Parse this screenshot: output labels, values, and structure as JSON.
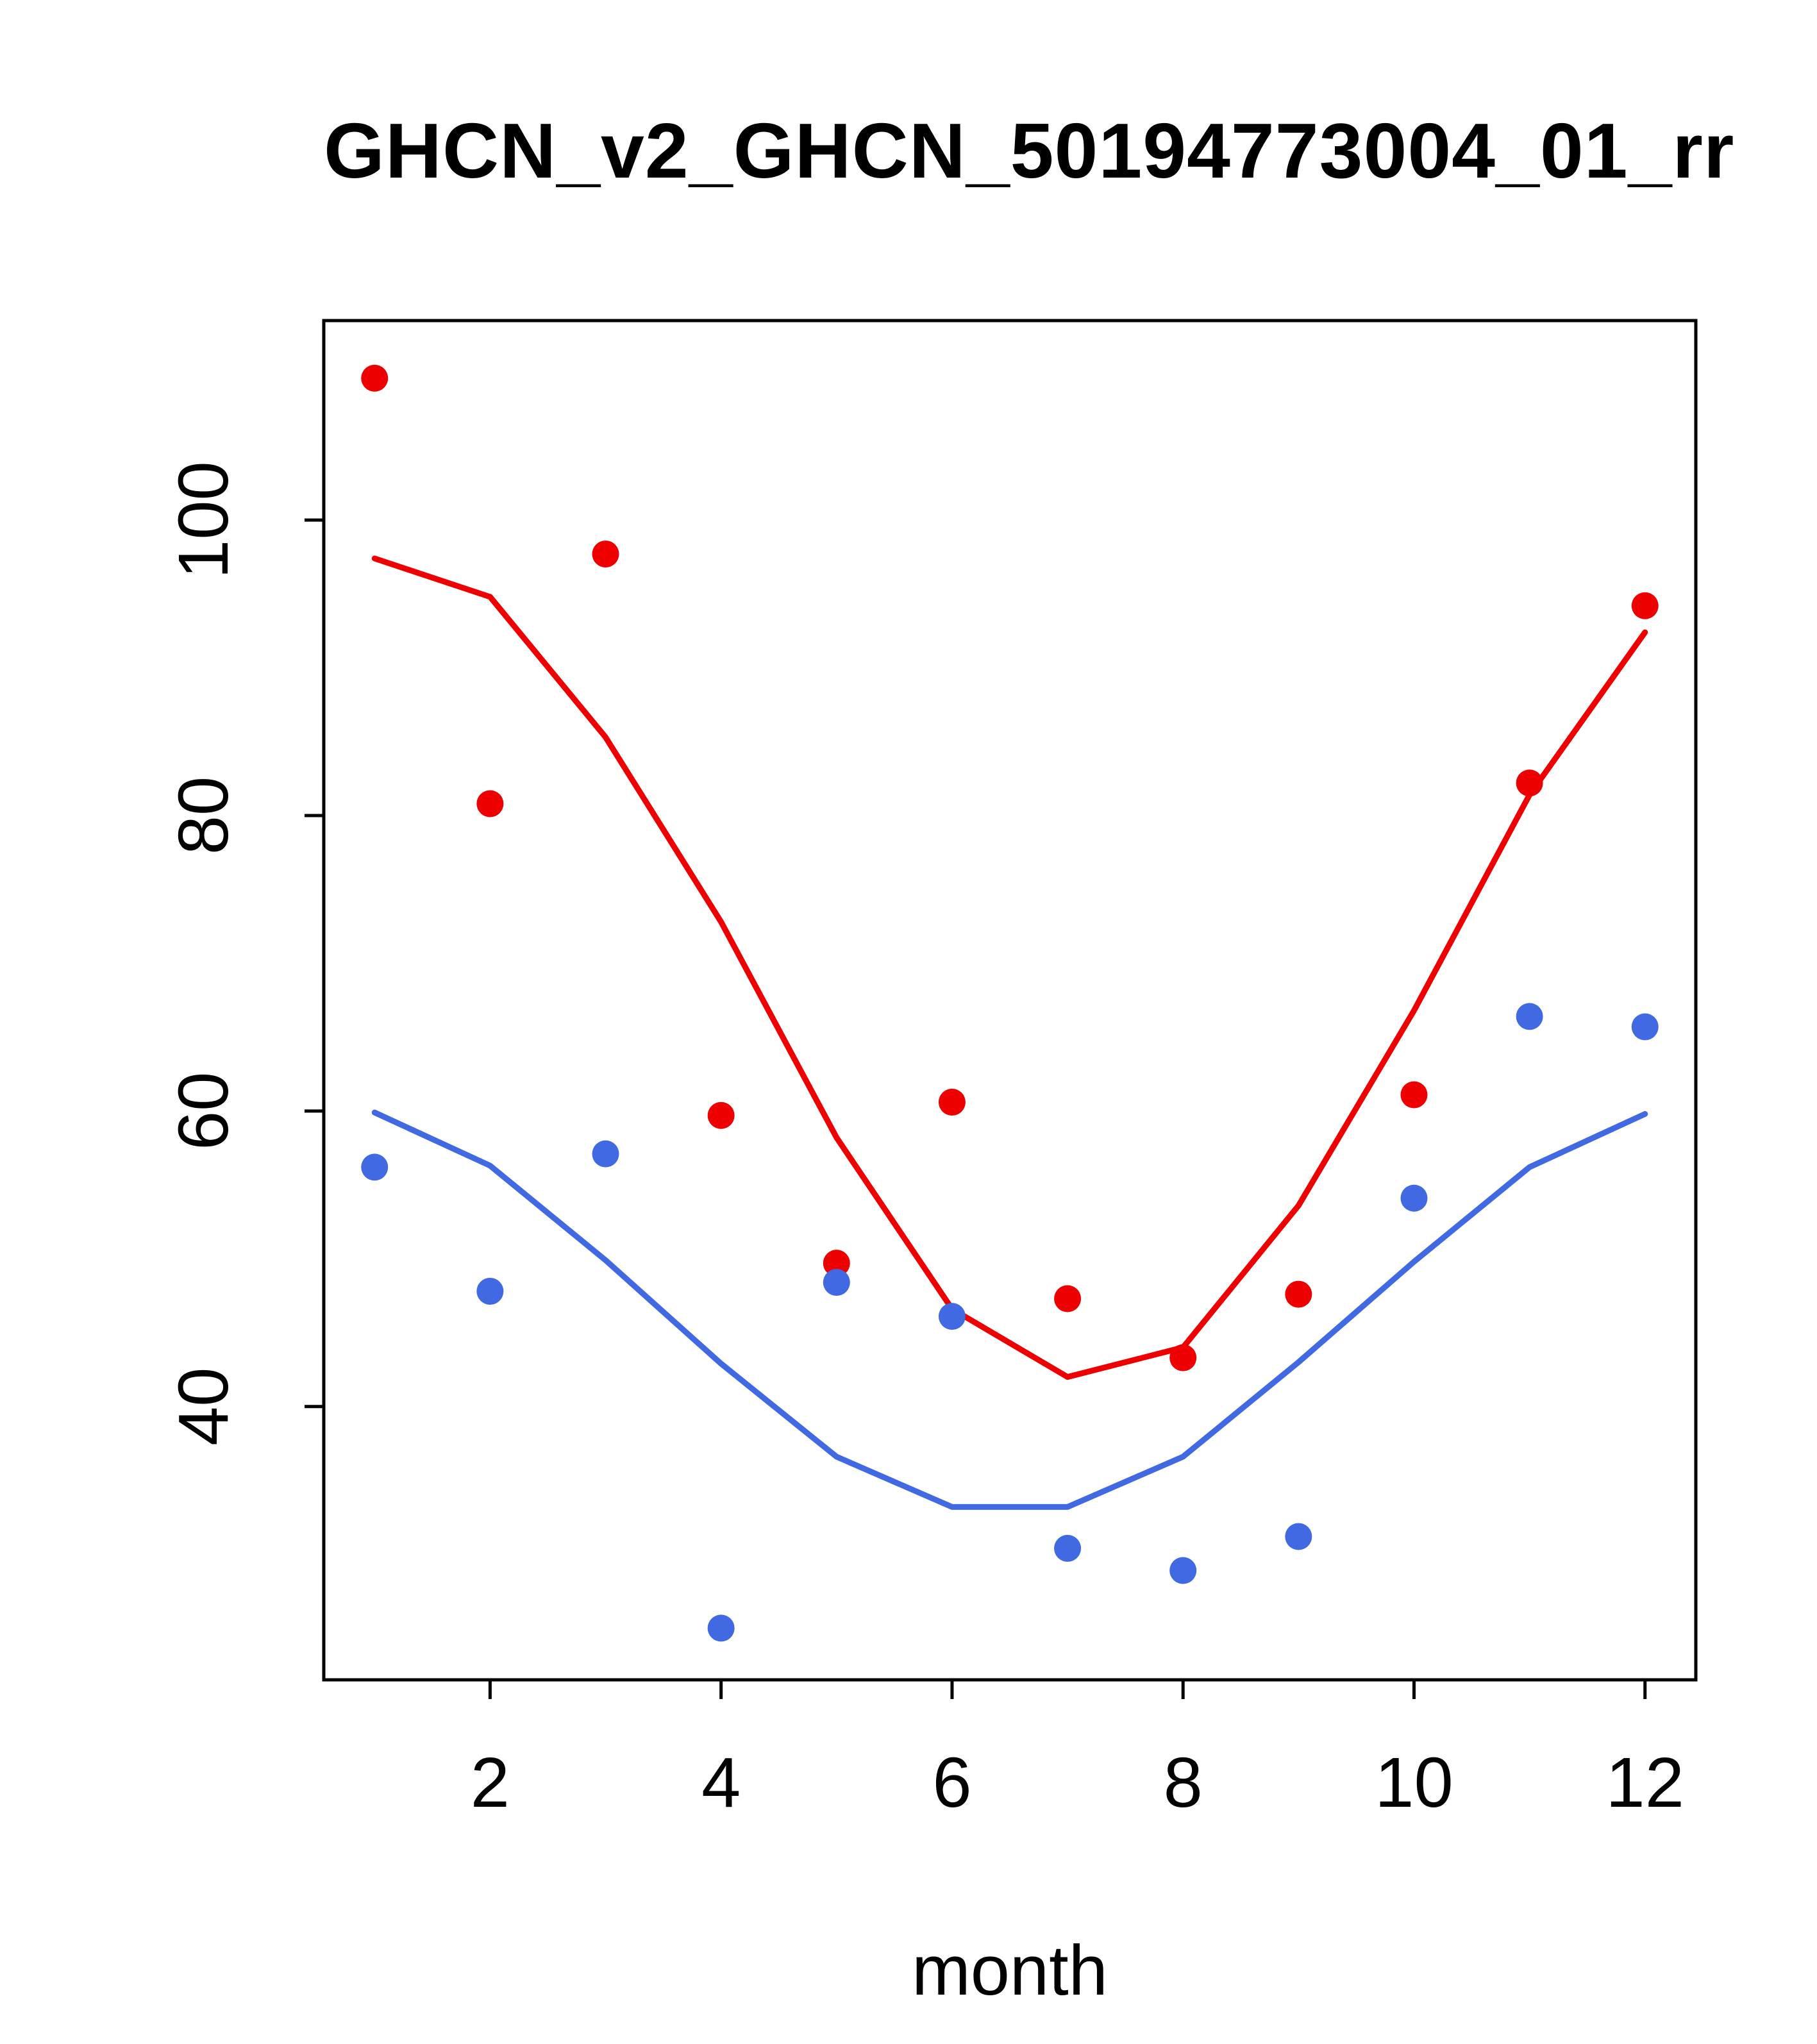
{
  "chart_data": {
    "type": "scatter",
    "title": "GHCN_v2_GHCN_50194773004_01_rr",
    "xlabel": "month",
    "ylabel": "",
    "x": [
      1,
      2,
      3,
      4,
      5,
      6,
      7,
      8,
      9,
      10,
      11,
      12
    ],
    "xticks": [
      2,
      4,
      6,
      8,
      10,
      12
    ],
    "yticks": [
      40,
      60,
      80,
      100
    ],
    "xlim": [
      0.56,
      12.44
    ],
    "ylim": [
      21.5,
      113.5
    ],
    "grid": false,
    "legend": "none",
    "colors": {
      "upper": "#ee0000",
      "lower": "#4169e1",
      "axis": "#000000"
    },
    "series": [
      {
        "name": "upper-line",
        "type": "line",
        "color": "#ee0000",
        "values": [
          97.4,
          94.8,
          85.3,
          72.8,
          58.2,
          46.6,
          42.0,
          44.0,
          53.6,
          66.8,
          81.4,
          92.4
        ]
      },
      {
        "name": "lower-line",
        "type": "line",
        "color": "#4169e1",
        "values": [
          59.9,
          56.3,
          49.9,
          42.9,
          36.6,
          33.2,
          33.2,
          36.6,
          43.0,
          49.8,
          56.2,
          59.8
        ]
      },
      {
        "name": "upper-points",
        "type": "scatter",
        "color": "#ee0000",
        "values": [
          109.6,
          80.8,
          97.7,
          59.7,
          49.7,
          60.6,
          47.3,
          43.3,
          47.6,
          61.1,
          82.2,
          94.2
        ]
      },
      {
        "name": "lower-points",
        "type": "scatter",
        "color": "#4169e1",
        "values": [
          56.2,
          47.8,
          57.1,
          25.0,
          48.4,
          46.1,
          30.4,
          28.9,
          31.2,
          54.1,
          66.4,
          65.7
        ]
      }
    ]
  }
}
